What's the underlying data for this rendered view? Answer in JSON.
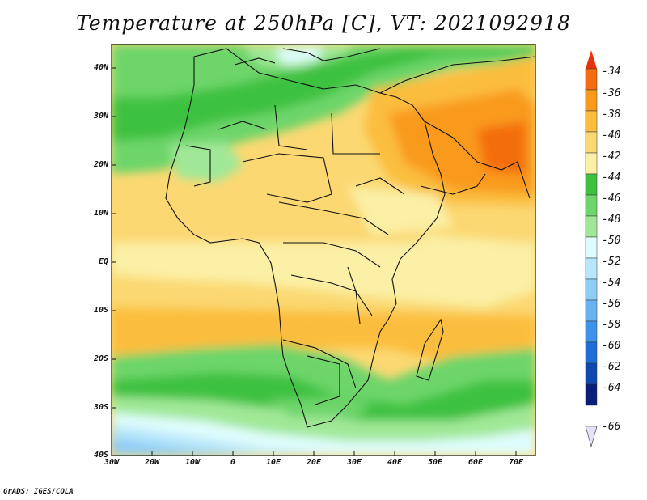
{
  "title": "Temperature at 250hPa [C], VT: 2021092918",
  "credit": "GrADS: IGES/COLA",
  "map": {
    "lat_labels": [
      "40N",
      "30N",
      "20N",
      "10N",
      "EQ",
      "10S",
      "20S",
      "30S",
      "40S"
    ],
    "lon_labels": [
      "30W",
      "20W",
      "10W",
      "0",
      "10E",
      "20E",
      "30E",
      "40E",
      "50E",
      "60E",
      "70E"
    ]
  },
  "colorbar": {
    "labels": [
      "-34",
      "-36",
      "-38",
      "-40",
      "-42",
      "-44",
      "-46",
      "-48",
      "-50",
      "-52",
      "-54",
      "-56",
      "-58",
      "-60",
      "-62",
      "-64",
      "-66"
    ],
    "colors": [
      "#e8310f",
      "#f46d0f",
      "#f99a1c",
      "#fbbd3e",
      "#fbd872",
      "#fbf0a6",
      "#3ec13f",
      "#6dd56b",
      "#a0e897",
      "#dffdfd",
      "#b8e6fa",
      "#8fcdf7",
      "#67b2f0",
      "#3e92ea",
      "#1e6ed8",
      "#0f48b0",
      "#0a1d78"
    ],
    "over_color": "#e8310f",
    "under_color": "#e6e0f8"
  },
  "legend": [
    {
      "color": "#e8310f",
      "label": "-34"
    },
    {
      "color": "#f46d0f",
      "label": "-36"
    },
    {
      "color": "#f99a1c",
      "label": "-38"
    },
    {
      "color": "#fbbd3e",
      "label": "-40"
    },
    {
      "color": "#fbd872",
      "label": "-42"
    },
    {
      "color": "#fbf0a6",
      "label": "-44"
    },
    {
      "color": "#3ec13f",
      "label": "-46"
    },
    {
      "color": "#6dd56b",
      "label": "-48"
    },
    {
      "color": "#a0e897",
      "label": "-50"
    },
    {
      "color": "#dffdfd",
      "label": "-52"
    },
    {
      "color": "#b8e6fa",
      "label": "-54"
    },
    {
      "color": "#8fcdf7",
      "label": "-56"
    },
    {
      "color": "#67b2f0",
      "label": "-58"
    },
    {
      "color": "#3e92ea",
      "label": "-60"
    },
    {
      "color": "#1e6ed8",
      "label": "-62"
    },
    {
      "color": "#0f48b0",
      "label": "-64"
    },
    {
      "color": "#0a1d78",
      "label": "-66"
    }
  ]
}
